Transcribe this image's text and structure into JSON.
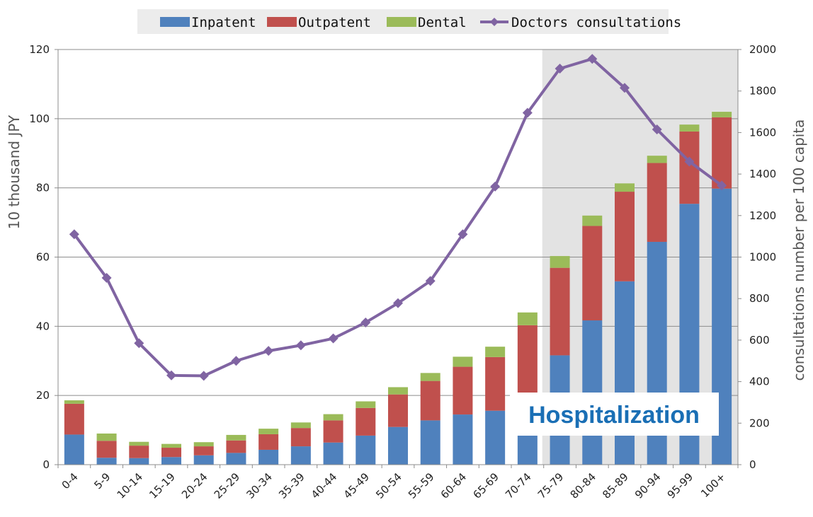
{
  "chart_data": {
    "type": "bar",
    "stacked": true,
    "categories": [
      "0-4",
      "5-9",
      "10-14",
      "15-19",
      "20-24",
      "25-29",
      "30-34",
      "35-39",
      "40-44",
      "45-49",
      "50-54",
      "55-59",
      "60-64",
      "65-69",
      "70-74",
      "75-79",
      "80-84",
      "85-89",
      "90-94",
      "95-99",
      "100+"
    ],
    "series": [
      {
        "name": "Inpatent",
        "color": "#4f81bd",
        "axis": "left",
        "values": [
          8.7,
          2.0,
          1.9,
          2.2,
          2.7,
          3.4,
          4.3,
          5.3,
          6.4,
          8.4,
          10.9,
          12.8,
          14.5,
          15.6,
          20.5,
          31.6,
          41.7,
          53.0,
          64.4,
          75.4,
          79.8
        ]
      },
      {
        "name": "Outpatent",
        "color": "#c0504d",
        "axis": "left",
        "values": [
          8.9,
          4.9,
          3.6,
          2.7,
          2.6,
          3.6,
          4.5,
          5.3,
          6.4,
          8.0,
          9.4,
          11.4,
          13.8,
          15.5,
          19.8,
          25.3,
          27.3,
          25.9,
          22.8,
          20.9,
          20.6
        ]
      },
      {
        "name": "Dental",
        "color": "#9bbb59",
        "axis": "left",
        "values": [
          1.0,
          2.1,
          1.1,
          1.1,
          1.2,
          1.6,
          1.6,
          1.6,
          1.8,
          1.9,
          2.1,
          2.3,
          2.9,
          3.0,
          3.7,
          3.4,
          3.0,
          2.4,
          2.1,
          2.0,
          1.6
        ]
      },
      {
        "name": "Doctors consultations",
        "color": "#8064a2",
        "type": "line",
        "marker": "diamond",
        "axis": "right",
        "values": [
          1110,
          900,
          585,
          430,
          428,
          500,
          548,
          575,
          608,
          685,
          778,
          885,
          1110,
          1340,
          1695,
          1908,
          1955,
          1815,
          1615,
          1460,
          1345
        ]
      }
    ],
    "yaxis_left": {
      "label": "10 thousand JPY",
      "min": 0,
      "max": 120,
      "ticks": [
        "0",
        "20",
        "40",
        "60",
        "80",
        "100",
        "120"
      ]
    },
    "yaxis_right": {
      "label": "consultations number per 100 capita",
      "min": 0,
      "max": 2000,
      "ticks": [
        "0",
        "200",
        "400",
        "600",
        "800",
        "1000",
        "1200",
        "1400",
        "1600",
        "1800",
        "2000"
      ]
    },
    "grid": true,
    "legend_position": "top",
    "shaded_region": {
      "from": "75-79",
      "to": "100+",
      "color": "#e3e3e3"
    },
    "annotation": "Hospitalization",
    "annotation_color": "#1a6fb5"
  }
}
